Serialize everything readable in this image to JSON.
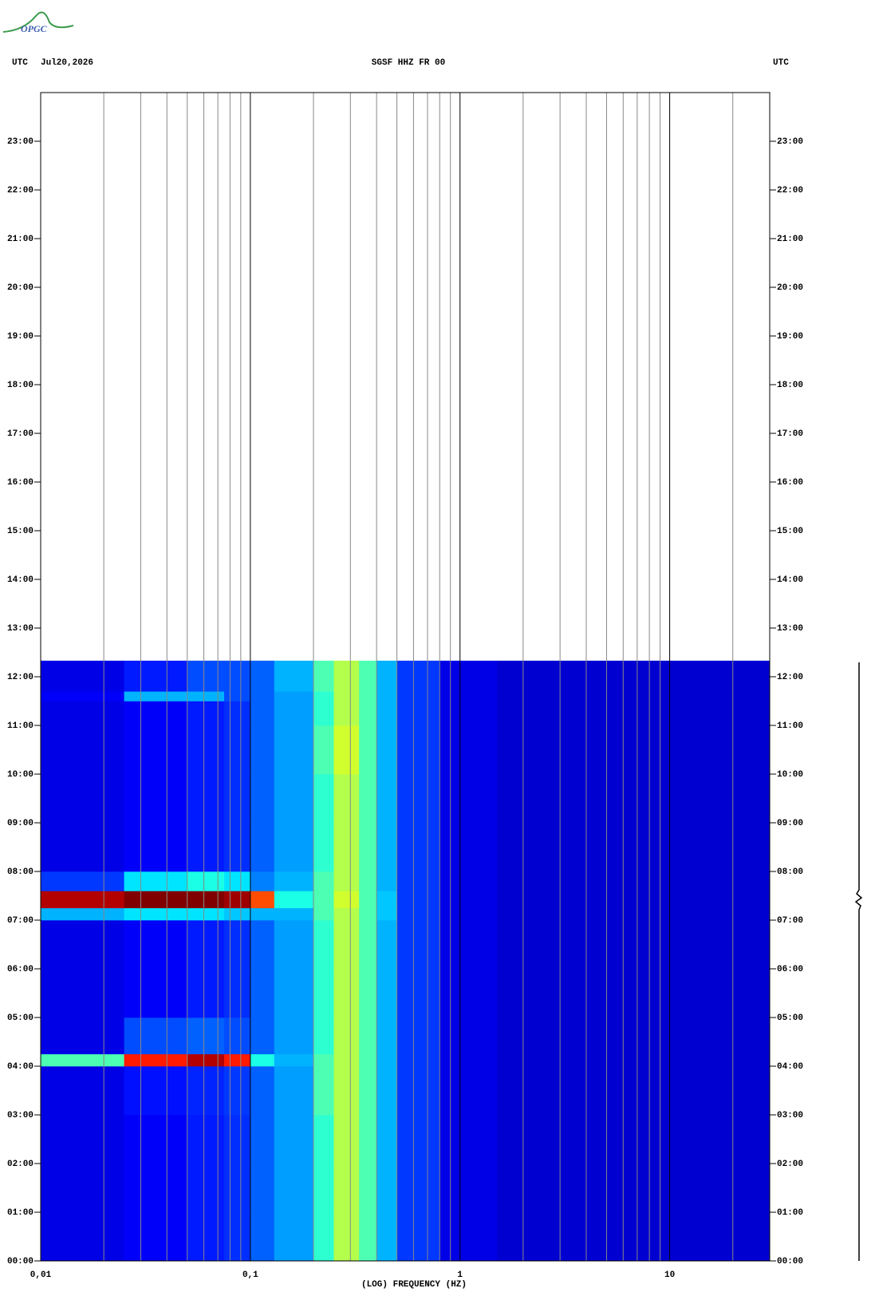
{
  "logo": "OPGC",
  "header": {
    "left_zone": "UTC",
    "date": "Jul20,2026",
    "station": "SGSF HHZ FR 00",
    "right_zone": "UTC"
  },
  "chart_data": {
    "type": "heatmap",
    "xlabel": "(LOG) FREQUENCY (HZ)",
    "xscale": "log",
    "xlim": [
      0.01,
      30
    ],
    "xticks": [
      {
        "value": 0.01,
        "label": "0,01"
      },
      {
        "value": 0.1,
        "label": "0,1"
      },
      1,
      10
    ],
    "xminor": [
      0.02,
      0.03,
      0.04,
      0.05,
      0.06,
      0.07,
      0.08,
      0.09,
      0.2,
      0.3,
      0.4,
      0.5,
      0.6,
      0.7,
      0.8,
      0.9,
      2,
      3,
      4,
      5,
      6,
      7,
      8,
      9,
      20
    ],
    "ylim": [
      0,
      24
    ],
    "yticks": [
      {
        "value": 0,
        "label": "00:00"
      },
      {
        "value": 1,
        "label": "01:00"
      },
      {
        "value": 2,
        "label": "02:00"
      },
      {
        "value": 3,
        "label": "03:00"
      },
      {
        "value": 4,
        "label": "04:00"
      },
      {
        "value": 5,
        "label": "05:00"
      },
      {
        "value": 6,
        "label": "06:00"
      },
      {
        "value": 7,
        "label": "07:00"
      },
      {
        "value": 8,
        "label": "08:00"
      },
      {
        "value": 9,
        "label": "09:00"
      },
      {
        "value": 10,
        "label": "10:00"
      },
      {
        "value": 11,
        "label": "11:00"
      },
      {
        "value": 12,
        "label": "12:00"
      },
      {
        "value": 13,
        "label": "13:00"
      },
      {
        "value": 14,
        "label": "14:00"
      },
      {
        "value": 15,
        "label": "15:00"
      },
      {
        "value": 16,
        "label": "16:00"
      },
      {
        "value": 17,
        "label": "17:00"
      },
      {
        "value": 18,
        "label": "18:00"
      },
      {
        "value": 19,
        "label": "19:00"
      },
      {
        "value": 20,
        "label": "20:00"
      },
      {
        "value": 21,
        "label": "21:00"
      },
      {
        "value": 22,
        "label": "22:00"
      },
      {
        "value": 23,
        "label": "23:00"
      }
    ],
    "x_edges": [
      0.01,
      0.025,
      0.05,
      0.075,
      0.1,
      0.13,
      0.2,
      0.25,
      0.33,
      0.4,
      0.5,
      0.8,
      1.5,
      30
    ],
    "y_edges": [
      0,
      1,
      2,
      3,
      4,
      4.25,
      5,
      6,
      7,
      7.25,
      7.6,
      8,
      9,
      10,
      11,
      11.5,
      11.7,
      12.33
    ],
    "z": [
      [
        0.1,
        0.12,
        0.15,
        0.17,
        0.22,
        0.28,
        0.42,
        0.55,
        0.45,
        0.3,
        0.18,
        0.1,
        0.08
      ],
      [
        0.1,
        0.12,
        0.15,
        0.17,
        0.22,
        0.28,
        0.42,
        0.55,
        0.45,
        0.3,
        0.18,
        0.1,
        0.08
      ],
      [
        0.1,
        0.12,
        0.15,
        0.17,
        0.22,
        0.28,
        0.42,
        0.55,
        0.45,
        0.3,
        0.18,
        0.1,
        0.08
      ],
      [
        0.1,
        0.14,
        0.16,
        0.18,
        0.22,
        0.28,
        0.45,
        0.55,
        0.45,
        0.3,
        0.18,
        0.1,
        0.08
      ],
      [
        0.45,
        0.85,
        0.95,
        0.85,
        0.4,
        0.3,
        0.45,
        0.55,
        0.45,
        0.3,
        0.18,
        0.1,
        0.08
      ],
      [
        0.1,
        0.2,
        0.22,
        0.2,
        0.22,
        0.28,
        0.42,
        0.55,
        0.45,
        0.3,
        0.18,
        0.1,
        0.08
      ],
      [
        0.1,
        0.12,
        0.15,
        0.17,
        0.22,
        0.28,
        0.42,
        0.55,
        0.45,
        0.3,
        0.18,
        0.1,
        0.08
      ],
      [
        0.1,
        0.12,
        0.15,
        0.17,
        0.22,
        0.28,
        0.42,
        0.55,
        0.45,
        0.3,
        0.18,
        0.1,
        0.08
      ],
      [
        0.3,
        0.35,
        0.35,
        0.32,
        0.3,
        0.3,
        0.45,
        0.55,
        0.45,
        0.32,
        0.18,
        0.1,
        0.08
      ],
      [
        0.95,
        1,
        1,
        0.97,
        0.8,
        0.4,
        0.45,
        0.58,
        0.45,
        0.32,
        0.18,
        0.1,
        0.08
      ],
      [
        0.18,
        0.35,
        0.4,
        0.35,
        0.25,
        0.3,
        0.45,
        0.55,
        0.45,
        0.3,
        0.18,
        0.1,
        0.08
      ],
      [
        0.1,
        0.12,
        0.15,
        0.17,
        0.22,
        0.28,
        0.42,
        0.55,
        0.45,
        0.3,
        0.18,
        0.1,
        0.08
      ],
      [
        0.1,
        0.12,
        0.15,
        0.17,
        0.22,
        0.28,
        0.42,
        0.55,
        0.45,
        0.3,
        0.18,
        0.1,
        0.08
      ],
      [
        0.1,
        0.12,
        0.15,
        0.17,
        0.22,
        0.28,
        0.45,
        0.58,
        0.45,
        0.3,
        0.18,
        0.1,
        0.08
      ],
      [
        0.1,
        0.12,
        0.15,
        0.17,
        0.22,
        0.28,
        0.42,
        0.55,
        0.45,
        0.3,
        0.18,
        0.1,
        0.08
      ],
      [
        0.12,
        0.3,
        0.3,
        0.2,
        0.22,
        0.28,
        0.42,
        0.55,
        0.45,
        0.3,
        0.18,
        0.1,
        0.08
      ],
      [
        0.1,
        0.15,
        0.2,
        0.2,
        0.22,
        0.3,
        0.45,
        0.55,
        0.45,
        0.3,
        0.18,
        0.1,
        0.08
      ]
    ],
    "colormap": "jet",
    "grid": true,
    "minor_grid_color": "#888888",
    "major_grid_color": "#000000"
  }
}
